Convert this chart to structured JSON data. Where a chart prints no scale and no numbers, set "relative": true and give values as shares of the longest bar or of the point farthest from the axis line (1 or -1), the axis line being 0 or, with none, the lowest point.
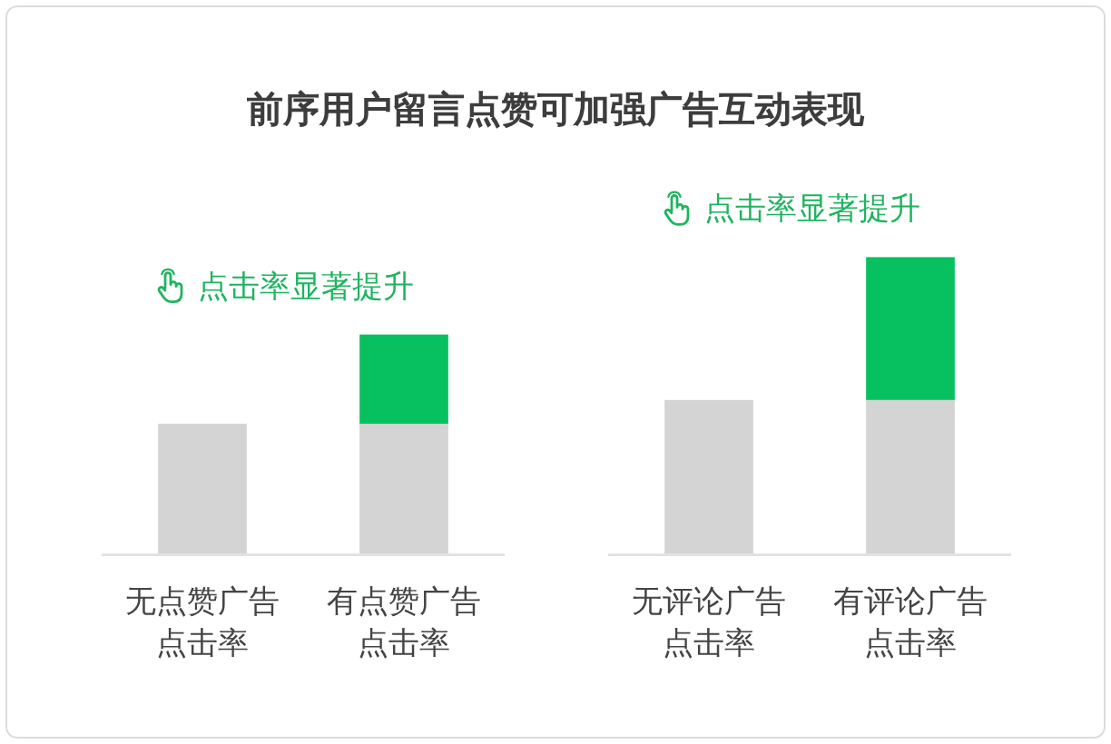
{
  "chart_data": {
    "type": "bar",
    "title": "前序用户留言点赞可加强广告互动表现",
    "categories": [
      "无点赞广告点击率",
      "有点赞广告点击率",
      "无评论广告点击率",
      "有评论广告点击率"
    ],
    "stacked": true,
    "relative": true,
    "series": [
      {
        "color": "#d4d4d4",
        "values": [
          0.44,
          0.44,
          0.52,
          0.52
        ]
      },
      {
        "color": "#07c160",
        "values": [
          null,
          0.3,
          null,
          0.48
        ]
      }
    ],
    "annotations": [
      "点击率显著提升",
      "点击率显著提升"
    ]
  }
}
